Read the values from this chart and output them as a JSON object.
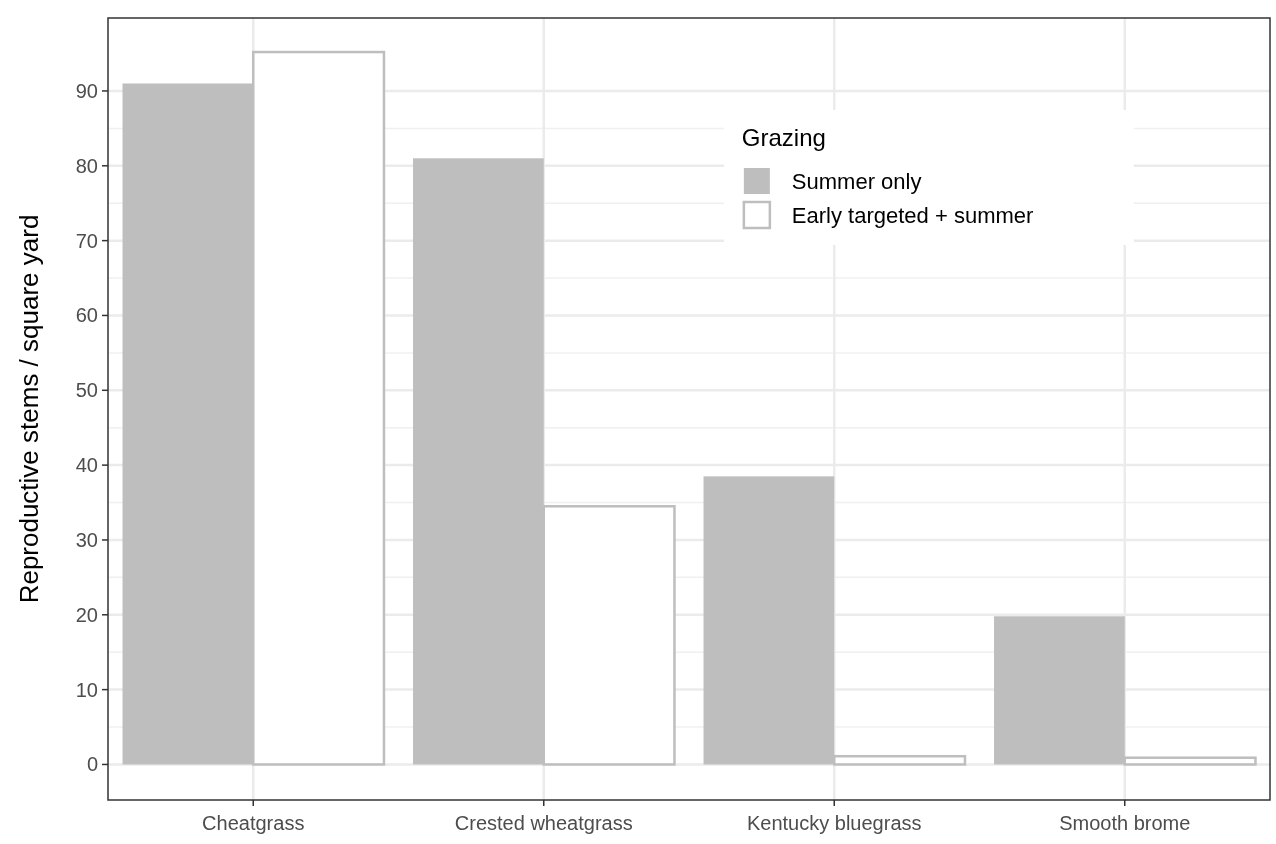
{
  "chart_data": {
    "type": "bar",
    "ylabel": "Reproductive stems / square yard",
    "legend_title": "Grazing",
    "categories": [
      "Cheatgrass",
      "Crested wheatgrass",
      "Kentucky bluegrass",
      "Smooth brome"
    ],
    "series": [
      {
        "name": "Summer only",
        "color": "#bebebe",
        "values": [
          91,
          81,
          38.5,
          19.8
        ]
      },
      {
        "name": "Early targeted + summer",
        "color": "#ffffff",
        "values": [
          95.2,
          34.5,
          1.1,
          0.9
        ]
      }
    ],
    "ylim": [
      -4.75,
      99.75
    ],
    "yticks": [
      0,
      10,
      20,
      30,
      40,
      50,
      60,
      70,
      80,
      90
    ],
    "grid": true,
    "legend": "top right"
  }
}
